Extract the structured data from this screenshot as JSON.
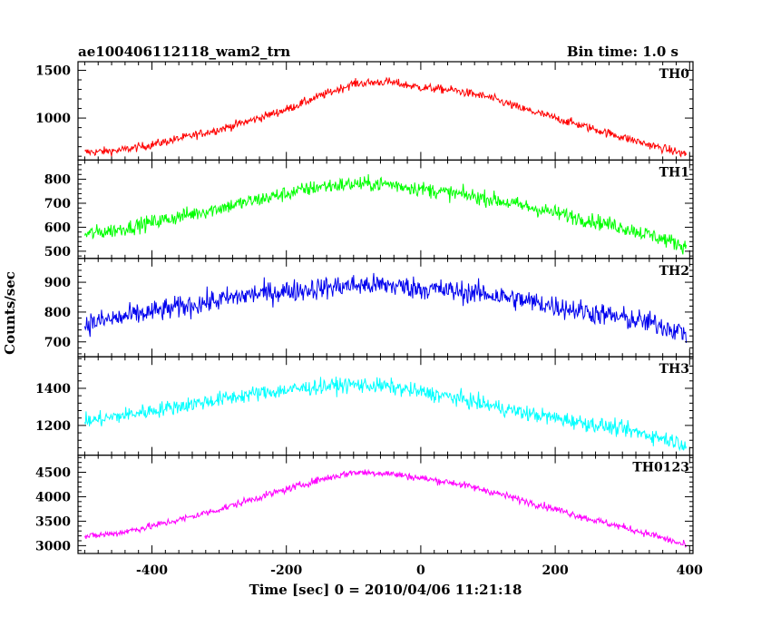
{
  "header": {
    "title": "ae100406112118_wam2_trn",
    "bin_time": "Bin time: 1.0 s"
  },
  "axes": {
    "xlabel": "Time [sec] 0 = 2010/04/06 11:21:18",
    "ylabel": "Counts/sec"
  },
  "chart_data": {
    "type": "line",
    "title": "ae100406112118_wam2_trn",
    "subtitle": "Bin time: 1.0 s",
    "xlabel": "Time [sec] 0 = 2010/04/06 11:21:18",
    "ylabel": "Counts/sec",
    "xlim": [
      -510,
      405
    ],
    "x_ticks": [
      -400,
      -200,
      0,
      200,
      400
    ],
    "grid": false,
    "legend": "none",
    "panels": [
      {
        "name": "TH0",
        "color": "#ff0000",
        "ylim": [
          560,
          1590
        ],
        "y_ticks": [
          1000,
          1500
        ],
        "x": [
          -500,
          -450,
          -400,
          -350,
          -300,
          -250,
          -200,
          -150,
          -100,
          -50,
          0,
          50,
          100,
          150,
          200,
          250,
          300,
          350,
          395
        ],
        "values": [
          640,
          660,
          720,
          800,
          880,
          980,
          1090,
          1230,
          1360,
          1380,
          1320,
          1290,
          1220,
          1100,
          1000,
          900,
          800,
          700,
          620
        ],
        "noise": 45
      },
      {
        "name": "TH1",
        "color": "#00ff00",
        "ylim": [
          470,
          880
        ],
        "y_ticks": [
          500,
          600,
          700,
          800
        ],
        "x": [
          -500,
          -450,
          -400,
          -350,
          -300,
          -250,
          -200,
          -150,
          -100,
          -50,
          0,
          50,
          100,
          150,
          200,
          250,
          300,
          350,
          395
        ],
        "values": [
          570,
          590,
          620,
          650,
          680,
          710,
          740,
          770,
          780,
          780,
          760,
          740,
          720,
          690,
          660,
          630,
          600,
          560,
          520
        ],
        "noise": 32
      },
      {
        "name": "TH2",
        "color": "#0000ee",
        "ylim": [
          650,
          980
        ],
        "y_ticks": [
          700,
          800,
          900
        ],
        "x": [
          -500,
          -450,
          -400,
          -350,
          -300,
          -250,
          -200,
          -150,
          -100,
          -50,
          0,
          50,
          100,
          150,
          200,
          250,
          300,
          350,
          395
        ],
        "values": [
          760,
          780,
          800,
          820,
          840,
          860,
          870,
          880,
          890,
          890,
          880,
          870,
          860,
          840,
          820,
          800,
          780,
          760,
          730
        ],
        "noise": 38
      },
      {
        "name": "TH3",
        "color": "#00ffff",
        "ylim": [
          1040,
          1570
        ],
        "y_ticks": [
          1200,
          1400
        ],
        "x": [
          -500,
          -450,
          -400,
          -350,
          -300,
          -250,
          -200,
          -150,
          -100,
          -50,
          0,
          50,
          100,
          150,
          200,
          250,
          300,
          350,
          395
        ],
        "values": [
          1220,
          1250,
          1280,
          1310,
          1340,
          1370,
          1390,
          1410,
          1420,
          1410,
          1380,
          1350,
          1310,
          1270,
          1240,
          1210,
          1180,
          1140,
          1100
        ],
        "noise": 42
      },
      {
        "name": "TH0123",
        "color": "#ff00ff",
        "ylim": [
          2840,
          4850
        ],
        "y_ticks": [
          3000,
          3500,
          4000,
          4500
        ],
        "x": [
          -500,
          -450,
          -400,
          -350,
          -300,
          -250,
          -200,
          -150,
          -100,
          -50,
          0,
          50,
          100,
          150,
          200,
          250,
          300,
          350,
          395
        ],
        "values": [
          3180,
          3260,
          3400,
          3560,
          3740,
          3950,
          4150,
          4350,
          4500,
          4480,
          4380,
          4280,
          4120,
          3930,
          3750,
          3550,
          3380,
          3200,
          3000
        ],
        "noise": 75
      }
    ]
  }
}
